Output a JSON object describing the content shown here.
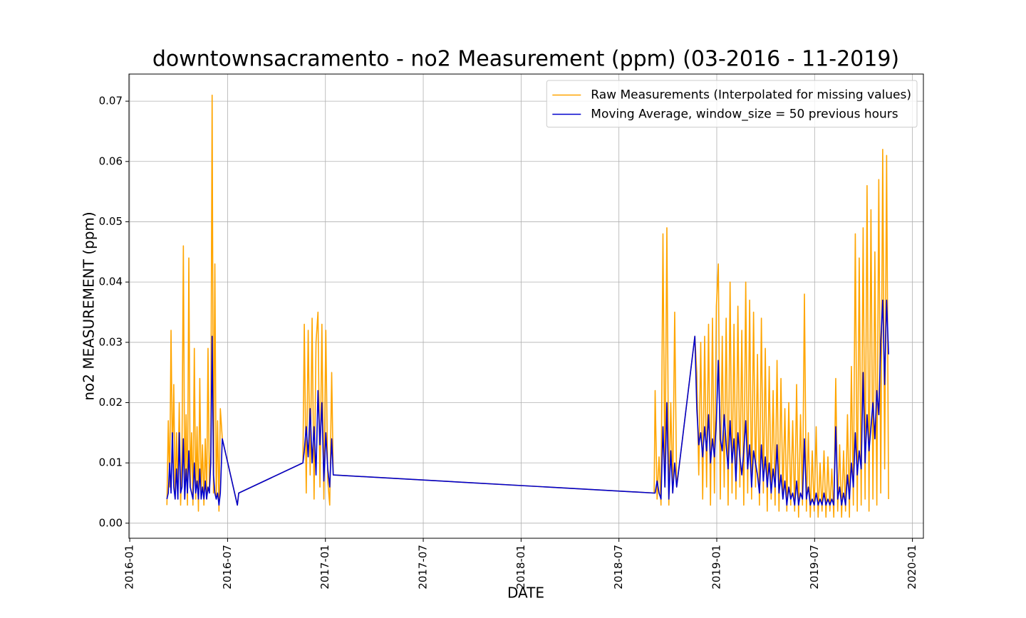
{
  "chart_data": {
    "type": "line",
    "title": "downtownsacramento - no2 Measurement (ppm) (03-2016 - 11-2019)",
    "x_label": "DATE",
    "y_label": "no2 MEASUREMENT (ppm)",
    "x": [
      2016.19,
      2016.197,
      2016.204,
      2016.211,
      2016.218,
      2016.225,
      2016.232,
      2016.239,
      2016.246,
      2016.253,
      2016.26,
      2016.267,
      2016.274,
      2016.281,
      2016.288,
      2016.295,
      2016.302,
      2016.309,
      2016.316,
      2016.323,
      2016.33,
      2016.337,
      2016.344,
      2016.351,
      2016.358,
      2016.365,
      2016.372,
      2016.379,
      2016.386,
      2016.393,
      2016.4,
      2016.407,
      2016.414,
      2016.421,
      2016.428,
      2016.435,
      2016.442,
      2016.449,
      2016.456,
      2016.463,
      2016.473,
      2016.55,
      2016.557,
      2016.885,
      2016.892,
      2016.902,
      2016.912,
      2016.922,
      2016.932,
      2016.942,
      2016.952,
      2016.962,
      2016.972,
      2016.982,
      2016.992,
      2017.002,
      2017.012,
      2017.022,
      2017.032,
      2017.04,
      2018.68,
      2018.685,
      2018.695,
      2018.705,
      2018.715,
      2018.725,
      2018.735,
      2018.745,
      2018.755,
      2018.765,
      2018.775,
      2018.785,
      2018.795,
      2018.888,
      2018.898,
      2018.908,
      2018.918,
      2018.928,
      2018.938,
      2018.948,
      2018.958,
      2018.968,
      2018.978,
      2018.988,
      2018.998,
      2019.008,
      2019.018,
      2019.028,
      2019.038,
      2019.048,
      2019.058,
      2019.068,
      2019.078,
      2019.088,
      2019.098,
      2019.108,
      2019.118,
      2019.128,
      2019.138,
      2019.148,
      2019.158,
      2019.168,
      2019.178,
      2019.188,
      2019.198,
      2019.208,
      2019.218,
      2019.228,
      2019.238,
      2019.248,
      2019.258,
      2019.268,
      2019.278,
      2019.288,
      2019.298,
      2019.308,
      2019.318,
      2019.328,
      2019.338,
      2019.348,
      2019.358,
      2019.368,
      2019.378,
      2019.388,
      2019.398,
      2019.408,
      2019.418,
      2019.428,
      2019.438,
      2019.448,
      2019.458,
      2019.468,
      2019.478,
      2019.488,
      2019.498,
      2019.508,
      2019.518,
      2019.528,
      2019.538,
      2019.548,
      2019.558,
      2019.568,
      2019.578,
      2019.588,
      2019.598,
      2019.608,
      2019.618,
      2019.628,
      2019.638,
      2019.648,
      2019.658,
      2019.668,
      2019.678,
      2019.688,
      2019.698,
      2019.708,
      2019.718,
      2019.728,
      2019.738,
      2019.748,
      2019.758,
      2019.768,
      2019.778,
      2019.788,
      2019.798,
      2019.808,
      2019.818,
      2019.828,
      2019.838,
      2019.848,
      2019.858,
      2019.868,
      2019.878
    ],
    "series": [
      {
        "name": "Raw Measurements (Interpolated for missing values)",
        "color": "#ffa500",
        "values": [
          0.003,
          0.017,
          0.006,
          0.032,
          0.01,
          0.023,
          0.004,
          0.015,
          0.005,
          0.02,
          0.003,
          0.012,
          0.046,
          0.004,
          0.018,
          0.003,
          0.044,
          0.006,
          0.015,
          0.003,
          0.029,
          0.004,
          0.016,
          0.002,
          0.024,
          0.005,
          0.013,
          0.003,
          0.014,
          0.004,
          0.029,
          0.006,
          0.012,
          0.071,
          0.005,
          0.043,
          0.004,
          0.017,
          0.002,
          0.019,
          0.014,
          0.003,
          0.005,
          0.01,
          0.033,
          0.005,
          0.032,
          0.008,
          0.034,
          0.004,
          0.03,
          0.035,
          0.006,
          0.033,
          0.004,
          0.032,
          0.007,
          0.003,
          0.025,
          0.008,
          0.005,
          0.022,
          0.004,
          0.011,
          0.003,
          0.048,
          0.006,
          0.049,
          0.003,
          0.02,
          0.005,
          0.035,
          0.006,
          0.031,
          0.025,
          0.008,
          0.03,
          0.004,
          0.031,
          0.006,
          0.033,
          0.003,
          0.034,
          0.005,
          0.036,
          0.043,
          0.004,
          0.031,
          0.006,
          0.034,
          0.003,
          0.04,
          0.005,
          0.033,
          0.004,
          0.036,
          0.006,
          0.032,
          0.003,
          0.04,
          0.005,
          0.037,
          0.004,
          0.035,
          0.006,
          0.028,
          0.003,
          0.034,
          0.005,
          0.029,
          0.002,
          0.026,
          0.004,
          0.022,
          0.003,
          0.027,
          0.002,
          0.024,
          0.004,
          0.019,
          0.002,
          0.02,
          0.003,
          0.017,
          0.002,
          0.023,
          0.001,
          0.018,
          0.003,
          0.038,
          0.002,
          0.015,
          0.001,
          0.012,
          0.002,
          0.016,
          0.001,
          0.01,
          0.002,
          0.012,
          0.001,
          0.011,
          0.002,
          0.009,
          0.001,
          0.024,
          0.002,
          0.013,
          0.001,
          0.012,
          0.002,
          0.018,
          0.001,
          0.026,
          0.003,
          0.048,
          0.002,
          0.044,
          0.003,
          0.049,
          0.004,
          0.056,
          0.002,
          0.052,
          0.004,
          0.045,
          0.003,
          0.057,
          0.005,
          0.062,
          0.009,
          0.061,
          0.004
        ]
      },
      {
        "name": "Moving Average, window_size = 50 previous hours",
        "color": "#0000cd",
        "values": [
          0.004,
          0.005,
          0.01,
          0.005,
          0.015,
          0.006,
          0.004,
          0.009,
          0.004,
          0.015,
          0.005,
          0.006,
          0.014,
          0.004,
          0.009,
          0.005,
          0.012,
          0.006,
          0.005,
          0.004,
          0.01,
          0.005,
          0.007,
          0.004,
          0.009,
          0.004,
          0.006,
          0.004,
          0.007,
          0.004,
          0.006,
          0.005,
          0.01,
          0.031,
          0.008,
          0.005,
          0.004,
          0.005,
          0.003,
          0.005,
          0.014,
          0.003,
          0.005,
          0.01,
          0.012,
          0.016,
          0.011,
          0.019,
          0.01,
          0.016,
          0.008,
          0.022,
          0.013,
          0.02,
          0.007,
          0.015,
          0.009,
          0.006,
          0.014,
          0.008,
          0.005,
          0.005,
          0.007,
          0.005,
          0.004,
          0.016,
          0.006,
          0.02,
          0.004,
          0.012,
          0.005,
          0.01,
          0.006,
          0.031,
          0.019,
          0.013,
          0.015,
          0.011,
          0.016,
          0.012,
          0.018,
          0.01,
          0.014,
          0.011,
          0.017,
          0.027,
          0.014,
          0.012,
          0.018,
          0.013,
          0.009,
          0.017,
          0.01,
          0.014,
          0.007,
          0.015,
          0.011,
          0.008,
          0.012,
          0.017,
          0.009,
          0.013,
          0.006,
          0.012,
          0.01,
          0.008,
          0.005,
          0.013,
          0.007,
          0.011,
          0.006,
          0.01,
          0.005,
          0.009,
          0.006,
          0.013,
          0.005,
          0.008,
          0.004,
          0.007,
          0.003,
          0.006,
          0.004,
          0.005,
          0.003,
          0.007,
          0.003,
          0.005,
          0.004,
          0.014,
          0.004,
          0.006,
          0.003,
          0.004,
          0.003,
          0.005,
          0.003,
          0.004,
          0.003,
          0.005,
          0.003,
          0.004,
          0.003,
          0.004,
          0.003,
          0.016,
          0.004,
          0.006,
          0.003,
          0.005,
          0.003,
          0.008,
          0.004,
          0.01,
          0.006,
          0.015,
          0.008,
          0.012,
          0.009,
          0.025,
          0.01,
          0.018,
          0.012,
          0.016,
          0.02,
          0.014,
          0.022,
          0.018,
          0.03,
          0.037,
          0.023,
          0.037,
          0.028
        ]
      }
    ],
    "xlim": [
      2015.996,
      2020.056
    ],
    "xticks": [
      {
        "value": 2016.0,
        "label": "2016-01"
      },
      {
        "value": 2016.5,
        "label": "2016-07"
      },
      {
        "value": 2017.0,
        "label": "2017-01"
      },
      {
        "value": 2017.5,
        "label": "2017-07"
      },
      {
        "value": 2018.0,
        "label": "2018-01"
      },
      {
        "value": 2018.5,
        "label": "2018-07"
      },
      {
        "value": 2019.0,
        "label": "2019-01"
      },
      {
        "value": 2019.5,
        "label": "2019-07"
      },
      {
        "value": 2020.0,
        "label": "2020-01"
      }
    ],
    "ylim": [
      -0.0025,
      0.0745
    ],
    "yticks": [
      {
        "value": 0,
        "label": "0.00"
      },
      {
        "value": 0.01,
        "label": "0.01"
      },
      {
        "value": 0.02,
        "label": "0.02"
      },
      {
        "value": 0.03,
        "label": "0.03"
      },
      {
        "value": 0.04,
        "label": "0.04"
      },
      {
        "value": 0.05,
        "label": "0.05"
      },
      {
        "value": 0.06,
        "label": "0.06"
      },
      {
        "value": 0.07,
        "label": "0.07"
      }
    ],
    "grid": true,
    "legend": "upper-right"
  }
}
